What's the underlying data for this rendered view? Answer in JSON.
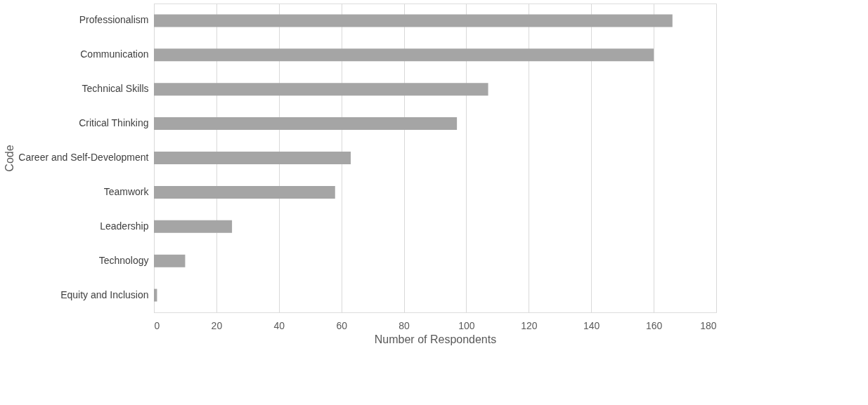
{
  "chart_data": {
    "type": "bar",
    "orientation": "horizontal",
    "xlabel": "Number of Respondents",
    "ylabel": "Code",
    "categories": [
      "Professionalism",
      "Communication",
      "Technical Skills ",
      "Critical Thinking",
      "Career and Self-Development",
      "Teamwork",
      "Leadership",
      "Technology",
      "Equity and Inclusion"
    ],
    "values": [
      166,
      160,
      107,
      97,
      63,
      58,
      25,
      10,
      1
    ],
    "color": "#a5a5a5",
    "xlim": [
      0,
      180
    ],
    "xticks": [
      0,
      20,
      40,
      60,
      80,
      100,
      120,
      140,
      160,
      180
    ],
    "grid": "x"
  }
}
